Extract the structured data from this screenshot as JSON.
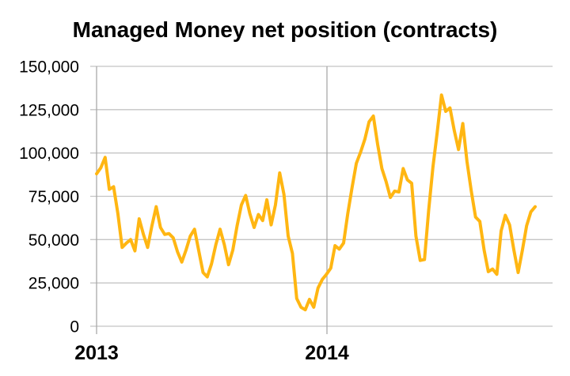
{
  "chart_data": {
    "type": "line",
    "title": "Managed Money net position (contracts)",
    "xlabel": "",
    "ylabel": "",
    "ylim": [
      0,
      150000
    ],
    "grid": true,
    "legend_position": "none",
    "x_labels": [
      "2013",
      "2014"
    ],
    "yticks": [
      0,
      25000,
      50000,
      75000,
      100000,
      125000,
      150000
    ],
    "ytick_labels": [
      "0",
      "25,000",
      "50,000",
      "75,000",
      "100,000",
      "125,000",
      "150,000"
    ],
    "series": [
      {
        "name": "Managed Money net position (contracts)",
        "color": "#FFB612",
        "values": [
          88000,
          91500,
          97500,
          79000,
          80500,
          65000,
          45500,
          48000,
          50000,
          43500,
          62000,
          53000,
          45500,
          58000,
          69000,
          57000,
          53000,
          53500,
          51000,
          43000,
          37000,
          44000,
          52000,
          56000,
          43500,
          31000,
          28500,
          36000,
          47000,
          56000,
          47000,
          35500,
          44000,
          58000,
          70000,
          75500,
          65000,
          57000,
          64500,
          61000,
          73000,
          58500,
          70000,
          88500,
          76000,
          52000,
          42000,
          16000,
          11000,
          9500,
          15500,
          11000,
          22000,
          27000,
          30000,
          33500,
          46500,
          44500,
          48000,
          65000,
          80000,
          94000,
          100500,
          108000,
          118000,
          121300,
          105000,
          91000,
          83500,
          74300,
          78000,
          77500,
          91000,
          84500,
          82500,
          52000,
          38000,
          38500,
          67000,
          92000,
          112000,
          133500,
          124000,
          126000,
          113000,
          102000,
          117000,
          95000,
          78000,
          63000,
          60500,
          44000,
          31500,
          33000,
          30000,
          55000,
          64000,
          58500,
          44000,
          31000,
          44000,
          58000,
          66000,
          69000
        ]
      }
    ]
  },
  "colors": {
    "series_line": "#FFB612",
    "gridline": "#C4C4C4",
    "axis_line": "#A9A9A9",
    "text": "#000000",
    "background": "#FFFFFF"
  }
}
